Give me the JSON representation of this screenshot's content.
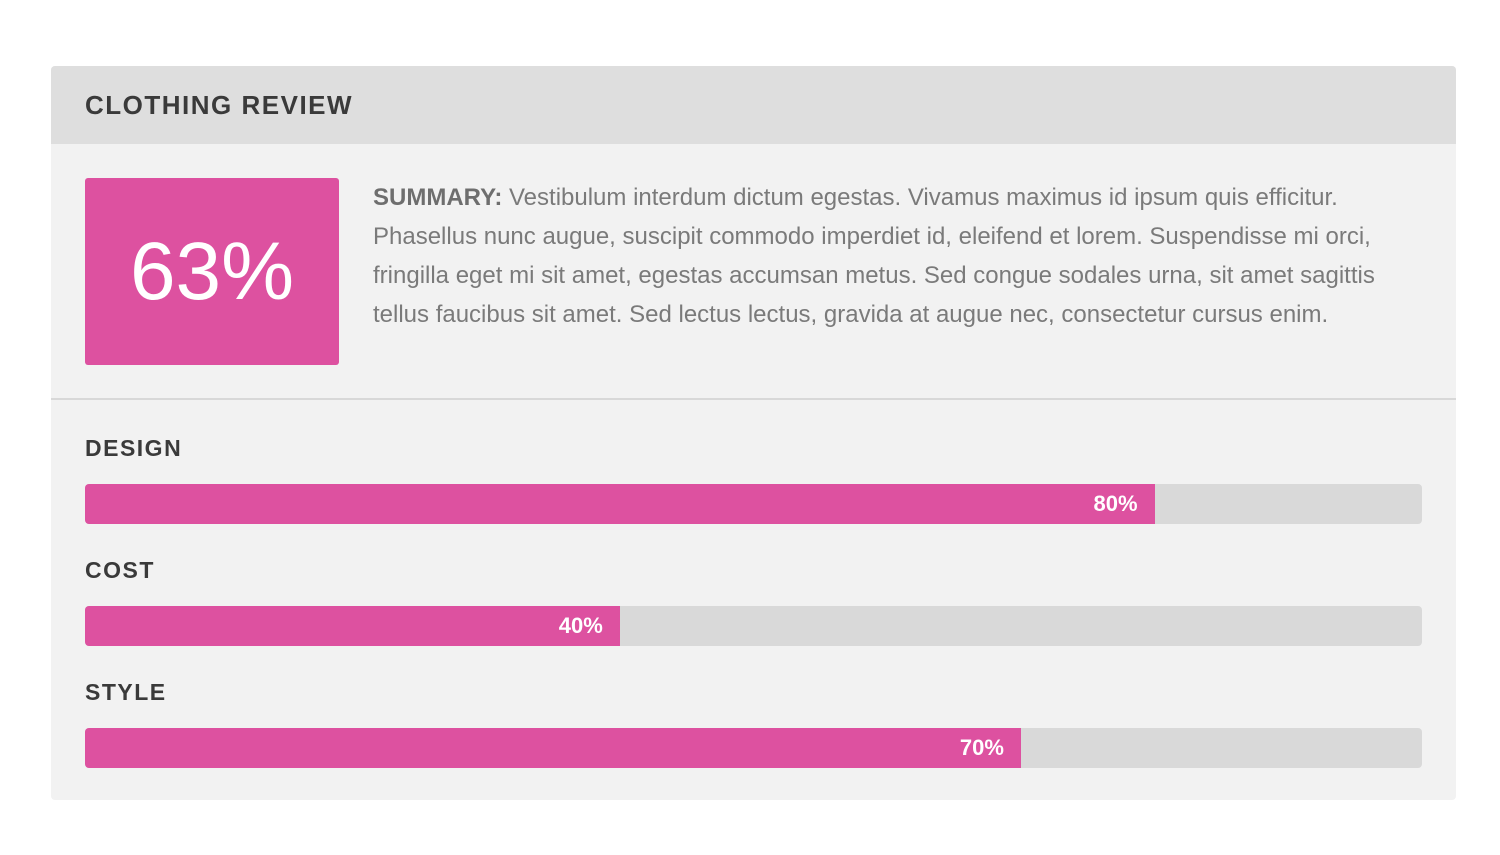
{
  "header": {
    "title": "CLOTHING REVIEW"
  },
  "summary": {
    "score": "63%",
    "label": "SUMMARY:",
    "text": " Vestibulum interdum dictum egestas. Vivamus maximus id ipsum quis efficitur. Phasellus nunc augue, suscipit commodo imperdiet id, eleifend et lorem. Suspendisse mi orci, fringilla eget mi sit amet, egestas accumsan metus. Sed congue sodales urna, sit amet sagittis tellus faucibus sit amet. Sed lectus lectus, gravida at augue nec, consectetur cursus enim."
  },
  "ratings": [
    {
      "label": "DESIGN",
      "value_text": "80%",
      "value": 80
    },
    {
      "label": "COST",
      "value_text": "40%",
      "value": 40
    },
    {
      "label": "STYLE",
      "value_text": "70%",
      "value": 70
    }
  ],
  "colors": {
    "accent": "#dd51a0",
    "track": "#d9d9d9",
    "header_bg": "#dedede",
    "card_bg": "#f2f2f2"
  }
}
